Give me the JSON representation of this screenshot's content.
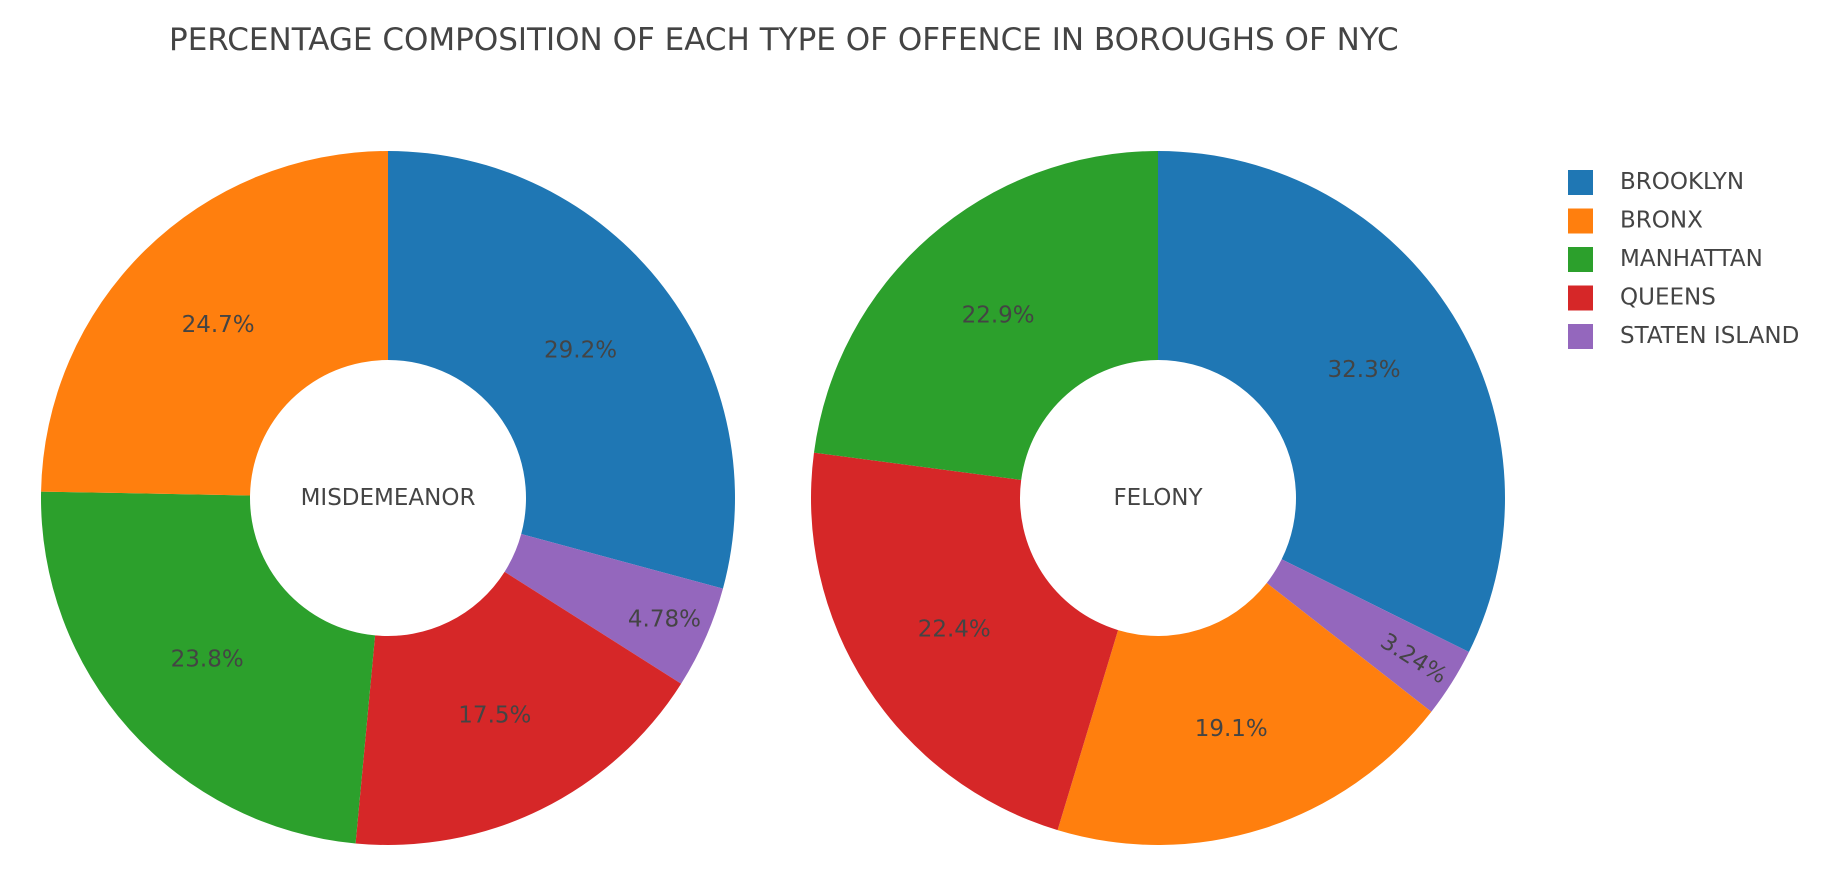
{
  "chart_data": {
    "type": "pie",
    "title": "PERCENTAGE COMPOSITION OF EACH TYPE OF OFFENCE IN BOROUGHS OF NYC",
    "legend": {
      "placement": "top-right",
      "items": [
        {
          "label": "BROOKLYN",
          "color": "#1f77b4"
        },
        {
          "label": "BRONX",
          "color": "#ff7f0e"
        },
        {
          "label": "MANHATTAN",
          "color": "#2ca02c"
        },
        {
          "label": "QUEENS",
          "color": "#d62728"
        },
        {
          "label": "STATEN ISLAND",
          "color": "#9467bd"
        }
      ]
    },
    "charts": [
      {
        "name": "MISDEMEANOR",
        "hole": true,
        "slices": [
          {
            "label": "BROOKLYN",
            "value": 29.2,
            "text": "29.2%",
            "color": "#1f77b4"
          },
          {
            "label": "STATEN ISLAND",
            "value": 4.78,
            "text": "4.78%",
            "color": "#9467bd"
          },
          {
            "label": "QUEENS",
            "value": 17.5,
            "text": "17.5%",
            "color": "#d62728"
          },
          {
            "label": "MANHATTAN",
            "value": 23.8,
            "text": "23.8%",
            "color": "#2ca02c"
          },
          {
            "label": "BRONX",
            "value": 24.7,
            "text": "24.7%",
            "color": "#ff7f0e"
          }
        ]
      },
      {
        "name": "FELONY",
        "hole": true,
        "slices": [
          {
            "label": "BROOKLYN",
            "value": 32.3,
            "text": "32.3%",
            "color": "#1f77b4"
          },
          {
            "label": "STATEN ISLAND",
            "value": 3.24,
            "text": "3.24%",
            "color": "#9467bd"
          },
          {
            "label": "BRONX",
            "value": 19.1,
            "text": "19.1%",
            "color": "#ff7f0e"
          },
          {
            "label": "QUEENS",
            "value": 22.4,
            "text": "22.4%",
            "color": "#d62728"
          },
          {
            "label": "MANHATTAN",
            "value": 22.9,
            "text": "22.9%",
            "color": "#2ca02c"
          }
        ]
      }
    ]
  }
}
